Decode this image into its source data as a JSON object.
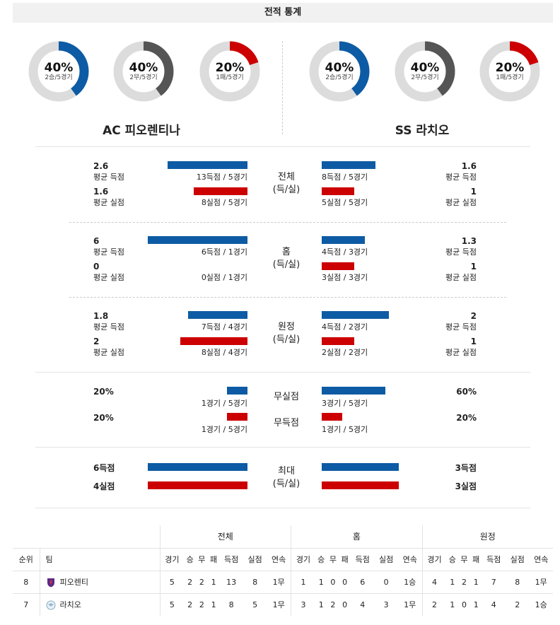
{
  "header": {
    "title": "전적 통계"
  },
  "teams": {
    "home": {
      "name": "AC 피오렌티나",
      "donuts": [
        {
          "pct": "40%",
          "sub": "2승/5경기",
          "value": 0.4,
          "color": "#0d5ba4"
        },
        {
          "pct": "40%",
          "sub": "2무/5경기",
          "value": 0.4,
          "color": "#555555"
        },
        {
          "pct": "20%",
          "sub": "1패/5경기",
          "value": 0.2,
          "color": "#cc0000"
        }
      ]
    },
    "away": {
      "name": "SS 라치오",
      "donuts": [
        {
          "pct": "40%",
          "sub": "2승/5경기",
          "value": 0.4,
          "color": "#0d5ba4"
        },
        {
          "pct": "40%",
          "sub": "2무/5경기",
          "value": 0.4,
          "color": "#555555"
        },
        {
          "pct": "20%",
          "sub": "1패/5경기",
          "value": 0.2,
          "color": "#cc0000"
        }
      ]
    }
  },
  "sections": {
    "total": {
      "label1": "전체",
      "label2": "(득/실)",
      "home_scored_val": "2.6",
      "home_scored_lbl": "평균 득점",
      "home_scored_detail": "13득점 / 5경기",
      "home_scored_ratio": 0.54,
      "home_conc_val": "1.6",
      "home_conc_lbl": "평균 실점",
      "home_conc_detail": "8실점 / 5경기",
      "home_conc_ratio": 0.36,
      "away_scored_val": "1.6",
      "away_scored_lbl": "평균 득점",
      "away_scored_detail": "8득점 / 5경기",
      "away_scored_ratio": 0.36,
      "away_conc_val": "1",
      "away_conc_lbl": "평균 실점",
      "away_conc_detail": "5실점 / 5경기",
      "away_conc_ratio": 0.22
    },
    "home": {
      "label1": "홈",
      "label2": "(득/실)",
      "home_scored_val": "6",
      "home_scored_lbl": "평균 득점",
      "home_scored_detail": "6득점 / 1경기",
      "home_scored_ratio": 0.67,
      "home_conc_val": "0",
      "home_conc_lbl": "평균 실점",
      "home_conc_detail": "0실점 / 1경기",
      "home_conc_ratio": 0.0,
      "away_scored_val": "1.3",
      "away_scored_lbl": "평균 득점",
      "away_scored_detail": "4득점 / 3경기",
      "away_scored_ratio": 0.29,
      "away_conc_val": "1",
      "away_conc_lbl": "평균 실점",
      "away_conc_detail": "3실점 / 3경기",
      "away_conc_ratio": 0.22
    },
    "away": {
      "label1": "원정",
      "label2": "(득/실)",
      "home_scored_val": "1.8",
      "home_scored_lbl": "평균 득점",
      "home_scored_detail": "7득점 / 4경기",
      "home_scored_ratio": 0.4,
      "home_conc_val": "2",
      "home_conc_lbl": "평균 실점",
      "home_conc_detail": "8실점 / 4경기",
      "home_conc_ratio": 0.45,
      "away_scored_val": "2",
      "away_scored_lbl": "평균 득점",
      "away_scored_detail": "4득점 / 2경기",
      "away_scored_ratio": 0.45,
      "away_conc_val": "1",
      "away_conc_lbl": "평균 실점",
      "away_conc_detail": "2실점 / 2경기",
      "away_conc_ratio": 0.22
    },
    "clean": {
      "label_clean": "무실점",
      "label_blank": "무득점",
      "home_clean_val": "20%",
      "home_clean_detail": "1경기 / 5경기",
      "home_clean_ratio": 0.14,
      "home_blank_val": "20%",
      "home_blank_detail": "1경기 / 5경기",
      "home_blank_ratio": 0.14,
      "away_clean_val": "60%",
      "away_clean_detail": "3경기 / 5경기",
      "away_clean_ratio": 0.43,
      "away_blank_val": "20%",
      "away_blank_detail": "1경기 / 5경기",
      "away_blank_ratio": 0.14
    },
    "max": {
      "label1": "최대",
      "label2": "(득/실)",
      "home_scored": "6득점",
      "home_conc": "4실점",
      "home_scored_ratio": 0.67,
      "home_conc_ratio": 0.67,
      "away_scored": "3득점",
      "away_conc": "3실점",
      "away_scored_ratio": 0.52,
      "away_conc_ratio": 0.52
    }
  },
  "standings": {
    "groups": [
      "전체",
      "홈",
      "원정"
    ],
    "rank_header": "순위",
    "team_header": "팀",
    "columns": [
      "경기",
      "승",
      "무",
      "패",
      "득점",
      "실점",
      "연속"
    ],
    "rows": [
      {
        "rank": "8",
        "team": "피오렌티",
        "crest": "fiorentina-crest",
        "total": [
          "5",
          "2",
          "2",
          "1",
          "13",
          "8",
          "1무"
        ],
        "home": [
          "1",
          "1",
          "0",
          "0",
          "6",
          "0",
          "1승"
        ],
        "away": [
          "4",
          "1",
          "2",
          "1",
          "7",
          "8",
          "1무"
        ]
      },
      {
        "rank": "7",
        "team": "라치오",
        "crest": "lazio-crest",
        "total": [
          "5",
          "2",
          "2",
          "1",
          "8",
          "5",
          "1무"
        ],
        "home": [
          "3",
          "1",
          "2",
          "0",
          "4",
          "3",
          "1무"
        ],
        "away": [
          "2",
          "1",
          "0",
          "1",
          "4",
          "2",
          "1승"
        ]
      }
    ]
  }
}
